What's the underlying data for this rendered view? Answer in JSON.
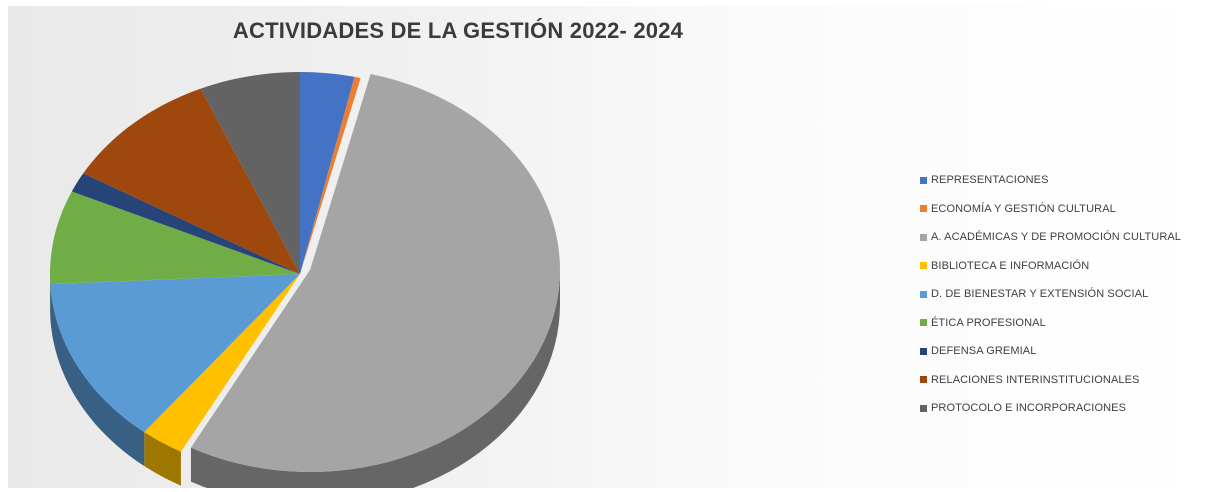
{
  "chart_data": {
    "type": "pie",
    "title": "ACTIVIDADES DE LA GESTIÓN 2022- 2024",
    "legend_position": "right",
    "style": "3d-exploded",
    "slices": [
      {
        "label": "REPRESENTACIONES",
        "value": 3.5,
        "color": "#4472c4"
      },
      {
        "label": "ECONOMÍA Y GESTIÓN CULTURAL",
        "value": 0.4,
        "color": "#ed7d31"
      },
      {
        "label": "A. ACADÉMICAS Y DE PROMOCIÓN CULTURAL",
        "value": 54.0,
        "color": "#a5a5a5"
      },
      {
        "label": "BIBLIOTECA E INFORMACIÓN",
        "value": 2.8,
        "color": "#ffc000"
      },
      {
        "label": "D. DE BIENESTAR Y EXTENSIÓN SOCIAL",
        "value": 13.5,
        "color": "#5b9bd5"
      },
      {
        "label": "ÉTICA PROFESIONAL",
        "value": 7.5,
        "color": "#70ad47"
      },
      {
        "label": "DEFENSA GREMIAL",
        "value": 1.6,
        "color": "#264478"
      },
      {
        "label": "RELACIONES INTERINSTITUCIONALES",
        "value": 10.2,
        "color": "#9e480e"
      },
      {
        "label": "PROTOCOLO E INCORPORACIONES",
        "value": 6.5,
        "color": "#636363"
      }
    ]
  }
}
